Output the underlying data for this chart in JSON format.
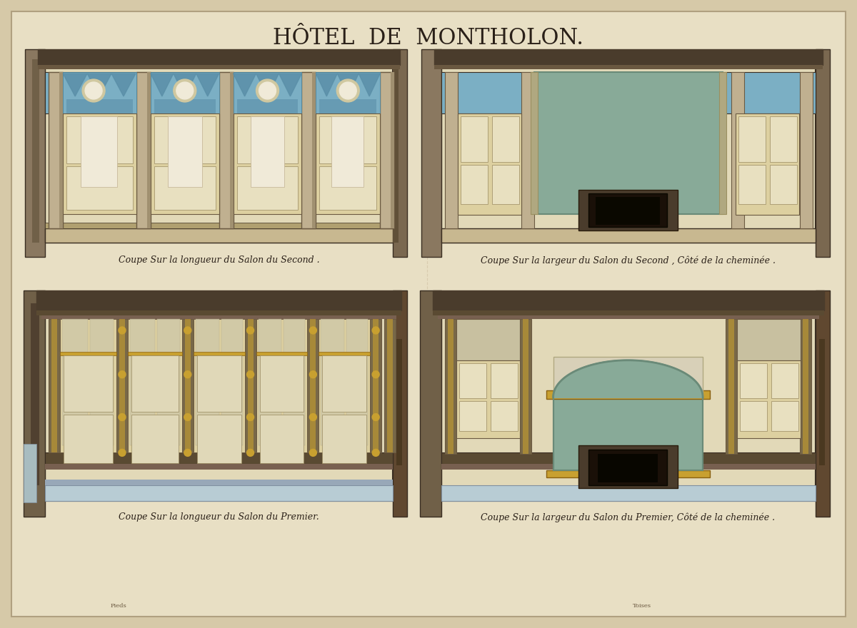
{
  "title": "HÔTEL  DE  MONTHOLON.",
  "title_fontsize": 22,
  "background_color": "#d6c9a8",
  "paper_color": "#e8dfc4",
  "border_color": "#b0a080",
  "captions": [
    "Coupe Sur la longueur du Salon du Second .",
    "Coupe Sur la largeur du Salon du Second , Côté de la cheminée .",
    "Coupe Sur la longueur du Salon du Premier.",
    "Coupe Sur la largeur du Salon du Premier, Côté de la cheminée ."
  ],
  "caption_fontsize": 9,
  "wall_pale": "#e2d9b8",
  "blue_wash": "#7bafc4",
  "blue_dark": "#5a8fa8",
  "gold_color": "#c8a030",
  "dark_brown": "#3a2e22",
  "medium_brown": "#6b5a42",
  "shadow_gray": "#706050",
  "cornice_color": "#4a3c2c",
  "marble_blue": "#b8ccd4",
  "panel_cream": "#ddd0a0",
  "green_mirror": "#88aa98"
}
